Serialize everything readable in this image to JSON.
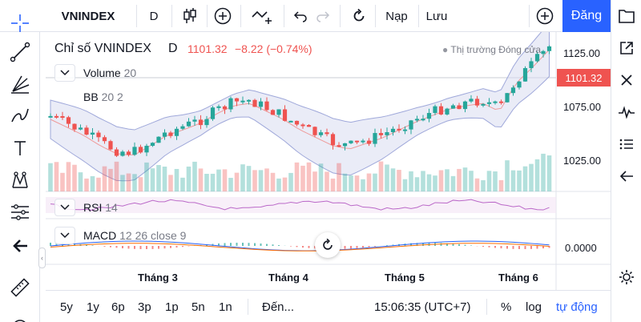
{
  "toolbar": {
    "symbol": "VNINDEX",
    "interval": "D",
    "undo_icon": "undo-icon",
    "redo_icon": "redo-icon",
    "load_label": "Nạp",
    "save_label": "Lưu",
    "publish_label": "Đăng"
  },
  "legend": {
    "title": "Chỉ số VNINDEX",
    "interval": "D",
    "price": "1101.32",
    "change": "−8.22 (−0.74%)",
    "market_status": "Thị trường Đóng cửa",
    "status_color": "#9598a1"
  },
  "indicators": {
    "volume": {
      "name": "Volume",
      "params": "20"
    },
    "bb": {
      "name": "BB",
      "params": "20 2"
    },
    "rsi": {
      "name": "RSI",
      "params": "14"
    },
    "macd": {
      "name": "MACD",
      "params": "12 26 close 9"
    }
  },
  "price_axis": {
    "labels": [
      "1125.00",
      "1075.00",
      "1025.00"
    ],
    "last_price": "1101.32",
    "macd_label": "0.0000"
  },
  "time_axis": {
    "labels": [
      "Tháng 3",
      "Tháng 4",
      "Tháng 5",
      "Tháng 6"
    ]
  },
  "bottombar": {
    "ranges": [
      "5y",
      "1y",
      "6p",
      "3p",
      "1p",
      "5n",
      "1n"
    ],
    "goto_label": "Đến...",
    "clock": "15:06:35 (UTC+7)",
    "percent_label": "%",
    "log_label": "log",
    "auto_label": "tự động"
  },
  "colors": {
    "up": "#26a69a",
    "down": "#ef5350",
    "accent": "#2962ff",
    "bb_fill": "#d9dcf0",
    "rsi": "#ba68c8"
  }
}
